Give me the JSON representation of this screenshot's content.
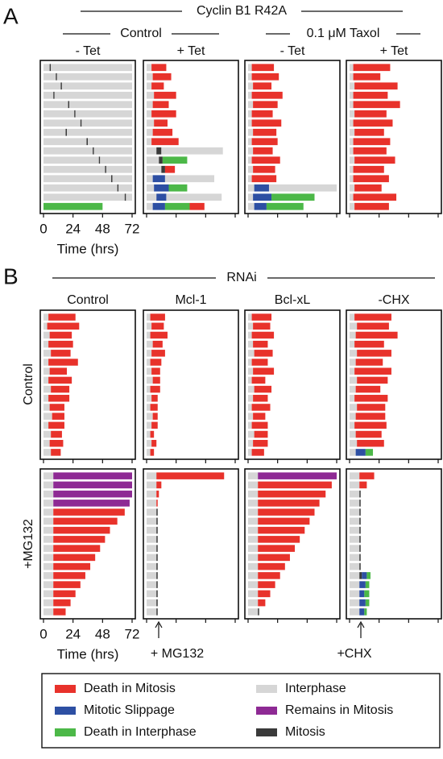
{
  "panel_a": {
    "letter": "A",
    "title": "Cyclin B1 R42A",
    "groups": [
      "Control",
      "0.1 μM Taxol"
    ],
    "columns": [
      "- Tet",
      "+ Tet",
      "- Tet",
      "+ Tet"
    ],
    "plots": [
      [
        [
          3,
          5,
          5,
          1,
          3,
          66
        ],
        [
          3,
          10,
          5,
          1,
          3,
          61
        ],
        [
          3,
          14,
          5,
          1,
          3,
          57
        ],
        [
          3,
          8,
          5,
          1,
          3,
          63
        ],
        [
          3,
          20,
          5,
          1,
          3,
          51
        ],
        [
          3,
          25,
          5,
          1,
          3,
          46
        ],
        [
          3,
          30,
          5,
          1,
          3,
          41
        ],
        [
          3,
          18,
          5,
          1,
          3,
          53
        ],
        [
          3,
          35,
          5,
          1,
          3,
          36
        ],
        [
          3,
          40,
          5,
          1,
          3,
          31
        ],
        [
          3,
          45,
          5,
          1,
          3,
          26
        ],
        [
          3,
          50,
          5,
          1,
          3,
          21
        ],
        [
          3,
          55,
          5,
          1,
          3,
          16
        ],
        [
          3,
          60,
          5,
          1,
          3,
          11
        ],
        [
          3,
          66,
          5,
          1,
          3,
          5
        ],
        [
          2,
          48
        ]
      ],
      [
        [
          3,
          4,
          0,
          12
        ],
        [
          3,
          5,
          0,
          15
        ],
        [
          3,
          4,
          0,
          10
        ],
        [
          3,
          6,
          0,
          18
        ],
        [
          3,
          5,
          0,
          13
        ],
        [
          3,
          4,
          0,
          20
        ],
        [
          3,
          6,
          0,
          11
        ],
        [
          3,
          5,
          0,
          16
        ],
        [
          3,
          4,
          0,
          22
        ],
        [
          3,
          8,
          5,
          4,
          3,
          50
        ],
        [
          3,
          10,
          5,
          3,
          2,
          20
        ],
        [
          3,
          12,
          5,
          3,
          0,
          8
        ],
        [
          3,
          5,
          1,
          10,
          3,
          40
        ],
        [
          3,
          6,
          1,
          12,
          2,
          15
        ],
        [
          3,
          8,
          1,
          8,
          3,
          45
        ],
        [
          3,
          5,
          1,
          10,
          2,
          20,
          0,
          12
        ]
      ],
      [
        [
          3,
          3,
          0,
          18
        ],
        [
          3,
          3,
          0,
          22
        ],
        [
          3,
          4,
          0,
          15
        ],
        [
          3,
          3,
          0,
          25
        ],
        [
          3,
          4,
          0,
          20
        ],
        [
          3,
          3,
          0,
          17
        ],
        [
          3,
          3,
          0,
          24
        ],
        [
          3,
          4,
          0,
          19
        ],
        [
          3,
          3,
          0,
          21
        ],
        [
          3,
          4,
          0,
          16
        ],
        [
          3,
          3,
          0,
          23
        ],
        [
          3,
          4,
          0,
          18
        ],
        [
          3,
          3,
          0,
          20
        ],
        [
          3,
          5,
          1,
          12,
          3,
          55
        ],
        [
          3,
          4,
          1,
          15,
          2,
          35
        ],
        [
          3,
          5,
          1,
          10,
          2,
          30
        ]
      ],
      [
        [
          3,
          3,
          0,
          30
        ],
        [
          3,
          3,
          0,
          22
        ],
        [
          3,
          4,
          0,
          35
        ],
        [
          3,
          3,
          0,
          28
        ],
        [
          3,
          3,
          0,
          38
        ],
        [
          3,
          4,
          0,
          26
        ],
        [
          3,
          3,
          0,
          32
        ],
        [
          3,
          4,
          0,
          24
        ],
        [
          3,
          3,
          0,
          30
        ],
        [
          3,
          3,
          0,
          27
        ],
        [
          3,
          4,
          0,
          33
        ],
        [
          3,
          3,
          0,
          25
        ],
        [
          3,
          3,
          0,
          29
        ],
        [
          3,
          4,
          0,
          22
        ],
        [
          3,
          3,
          0,
          35
        ],
        [
          3,
          4,
          0,
          28
        ]
      ]
    ]
  },
  "panel_b": {
    "letter": "B",
    "title": "RNAi",
    "columns": [
      "Control",
      "Mcl-1",
      "Bcl-xL",
      "-CHX"
    ],
    "row_labels": [
      "Control",
      "+MG132"
    ],
    "plots": [
      [
        [
          [
            3,
            4,
            0,
            22
          ],
          [
            3,
            3,
            0,
            26
          ],
          [
            3,
            5,
            0,
            18
          ],
          [
            3,
            4,
            0,
            20
          ],
          [
            3,
            6,
            0,
            16
          ],
          [
            3,
            4,
            0,
            24
          ],
          [
            3,
            5,
            0,
            14
          ],
          [
            3,
            4,
            0,
            19
          ],
          [
            3,
            6,
            0,
            15
          ],
          [
            3,
            4,
            0,
            17
          ],
          [
            3,
            5,
            0,
            12
          ],
          [
            3,
            7,
            0,
            10
          ],
          [
            3,
            4,
            0,
            13
          ],
          [
            3,
            6,
            0,
            9
          ],
          [
            3,
            5,
            0,
            11
          ],
          [
            3,
            6,
            0,
            8
          ]
        ],
        [
          [
            3,
            3,
            0,
            12
          ],
          [
            3,
            4,
            0,
            10
          ],
          [
            3,
            3,
            0,
            14
          ],
          [
            3,
            5,
            0,
            8
          ],
          [
            3,
            4,
            0,
            11
          ],
          [
            3,
            3,
            0,
            9
          ],
          [
            3,
            4,
            0,
            7
          ],
          [
            3,
            5,
            0,
            6
          ],
          [
            3,
            3,
            0,
            8
          ],
          [
            3,
            4,
            0,
            5
          ],
          [
            3,
            3,
            0,
            6
          ],
          [
            3,
            5,
            0,
            4
          ],
          [
            3,
            4,
            0,
            5
          ],
          [
            3,
            3,
            0,
            3
          ],
          [
            3,
            4,
            0,
            4
          ],
          [
            3,
            3,
            0,
            3
          ]
        ],
        [
          [
            3,
            3,
            0,
            16
          ],
          [
            3,
            4,
            0,
            14
          ],
          [
            3,
            3,
            0,
            18
          ],
          [
            3,
            4,
            0,
            12
          ],
          [
            3,
            5,
            0,
            15
          ],
          [
            3,
            3,
            0,
            13
          ],
          [
            3,
            4,
            0,
            17
          ],
          [
            3,
            3,
            0,
            11
          ],
          [
            3,
            5,
            0,
            14
          ],
          [
            3,
            4,
            0,
            12
          ],
          [
            3,
            3,
            0,
            15
          ],
          [
            3,
            4,
            0,
            10
          ],
          [
            3,
            3,
            0,
            13
          ],
          [
            3,
            5,
            0,
            11
          ],
          [
            3,
            4,
            0,
            12
          ],
          [
            3,
            3,
            0,
            10
          ]
        ],
        [
          [
            3,
            4,
            0,
            30
          ],
          [
            3,
            6,
            0,
            26
          ],
          [
            3,
            5,
            0,
            34
          ],
          [
            3,
            4,
            0,
            24
          ],
          [
            3,
            6,
            0,
            28
          ],
          [
            3,
            5,
            0,
            22
          ],
          [
            3,
            4,
            0,
            30
          ],
          [
            3,
            6,
            0,
            25
          ],
          [
            3,
            5,
            0,
            20
          ],
          [
            3,
            4,
            0,
            27
          ],
          [
            3,
            6,
            0,
            23
          ],
          [
            3,
            5,
            0,
            24
          ],
          [
            3,
            4,
            0,
            26
          ],
          [
            3,
            5,
            0,
            21
          ],
          [
            3,
            6,
            0,
            22
          ],
          [
            3,
            5,
            1,
            8,
            2,
            6
          ]
        ]
      ],
      [
        [
          [
            3,
            8,
            4,
            64
          ],
          [
            3,
            8,
            4,
            64
          ],
          [
            3,
            8,
            4,
            64
          ],
          [
            3,
            8,
            4,
            62
          ],
          [
            3,
            8,
            0,
            58
          ],
          [
            3,
            8,
            0,
            52
          ],
          [
            3,
            8,
            0,
            46
          ],
          [
            3,
            8,
            0,
            42
          ],
          [
            3,
            8,
            0,
            38
          ],
          [
            3,
            8,
            0,
            34
          ],
          [
            3,
            8,
            0,
            30
          ],
          [
            3,
            8,
            0,
            26
          ],
          [
            3,
            8,
            0,
            22
          ],
          [
            3,
            8,
            0,
            18
          ],
          [
            3,
            8,
            0,
            14
          ],
          [
            3,
            8,
            0,
            10
          ]
        ],
        [
          [
            3,
            8,
            0,
            55
          ],
          [
            3,
            8,
            0,
            4
          ],
          [
            3,
            8,
            0,
            2
          ],
          [
            3,
            8,
            0,
            1
          ],
          [
            3,
            8,
            5,
            1
          ],
          [
            3,
            8,
            5,
            1
          ],
          [
            3,
            8,
            5,
            1
          ],
          [
            3,
            8,
            5,
            1
          ],
          [
            3,
            8,
            5,
            1
          ],
          [
            3,
            8,
            5,
            1
          ],
          [
            3,
            8,
            5,
            1
          ],
          [
            3,
            8,
            5,
            1
          ],
          [
            3,
            8,
            5,
            1
          ],
          [
            3,
            8,
            5,
            1
          ],
          [
            3,
            8,
            5,
            1
          ],
          [
            3,
            8,
            5,
            1
          ]
        ],
        [
          [
            3,
            8,
            4,
            64
          ],
          [
            3,
            8,
            0,
            60
          ],
          [
            3,
            8,
            0,
            55
          ],
          [
            3,
            8,
            0,
            50
          ],
          [
            3,
            8,
            0,
            46
          ],
          [
            3,
            8,
            0,
            42
          ],
          [
            3,
            8,
            0,
            38
          ],
          [
            3,
            8,
            0,
            34
          ],
          [
            3,
            8,
            0,
            30
          ],
          [
            3,
            8,
            0,
            26
          ],
          [
            3,
            8,
            0,
            22
          ],
          [
            3,
            8,
            0,
            18
          ],
          [
            3,
            8,
            0,
            14
          ],
          [
            3,
            8,
            0,
            10
          ],
          [
            3,
            8,
            0,
            6
          ],
          [
            3,
            8,
            5,
            1
          ]
        ],
        [
          [
            3,
            8,
            0,
            12
          ],
          [
            3,
            8,
            0,
            6
          ],
          [
            3,
            8,
            5,
            1
          ],
          [
            3,
            8,
            5,
            1
          ],
          [
            3,
            8,
            5,
            1
          ],
          [
            3,
            8,
            5,
            1
          ],
          [
            3,
            8,
            5,
            1
          ],
          [
            3,
            8,
            5,
            1
          ],
          [
            3,
            8,
            5,
            1
          ],
          [
            3,
            8,
            5,
            1
          ],
          [
            3,
            8,
            5,
            1
          ],
          [
            3,
            8,
            5,
            2,
            1,
            4,
            2,
            3
          ],
          [
            3,
            8,
            1,
            5,
            2,
            3
          ],
          [
            3,
            8,
            1,
            4,
            2,
            4
          ],
          [
            3,
            8,
            1,
            5,
            2,
            3
          ],
          [
            3,
            8,
            1,
            4,
            2,
            2
          ]
        ]
      ]
    ]
  },
  "axis": {
    "xlim": [
      0,
      72
    ],
    "xticks": [
      0,
      24,
      48,
      72
    ],
    "xlabel": "Time (hrs)"
  },
  "annotations": [
    "+ MG132",
    "+CHX"
  ],
  "legend": {
    "items": [
      {
        "label": "Death in Mitosis",
        "color": "#e8322b"
      },
      {
        "label": "Mitotic Slippage",
        "color": "#2d4fa3"
      },
      {
        "label": "Death in Interphase",
        "color": "#4cb848"
      },
      {
        "label": "Interphase",
        "color": "#d6d6d6"
      },
      {
        "label": "Remains in Mitosis",
        "color": "#8e2a94"
      },
      {
        "label": "Mitosis",
        "color": "#3a3a3a"
      }
    ]
  }
}
